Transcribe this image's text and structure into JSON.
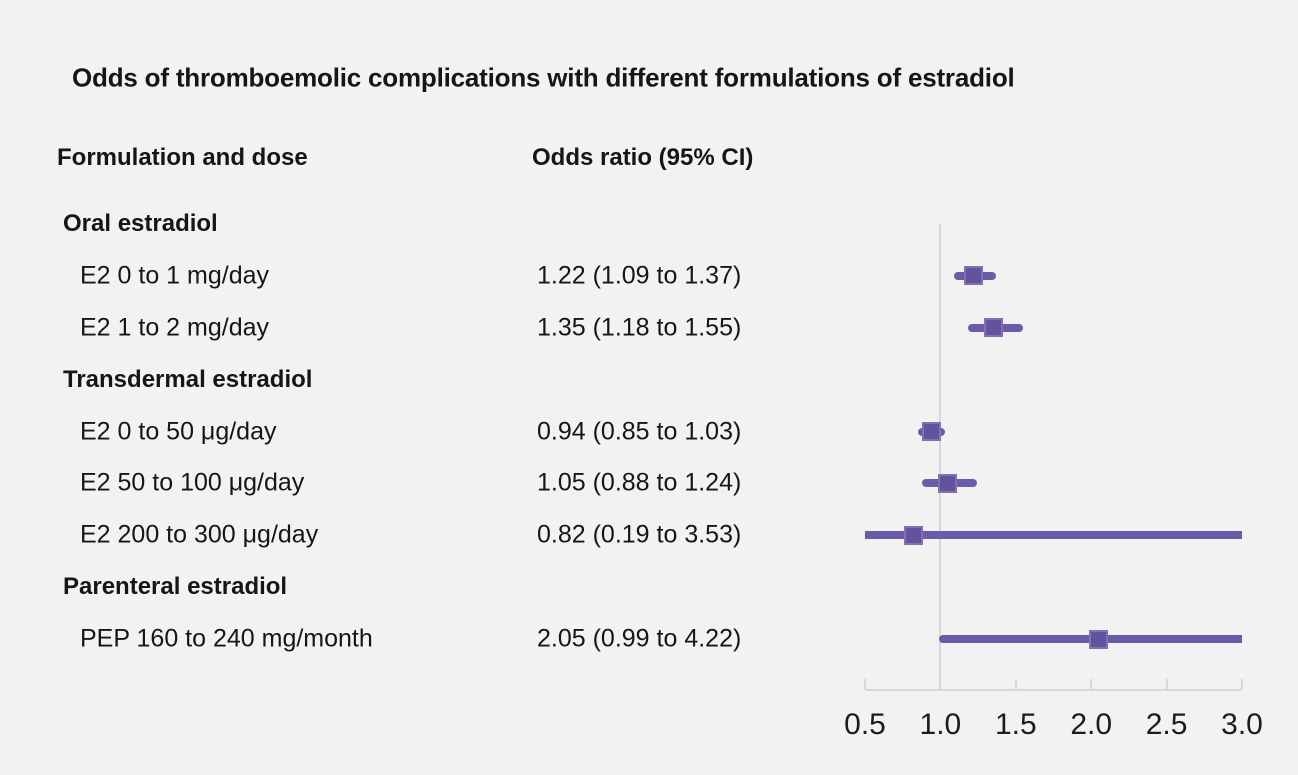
{
  "figure": {
    "title": "Odds of thromboemolic complications with different formulations of estradiol"
  },
  "table": {
    "col1_header": "Formulation and dose",
    "col2_header": "Odds ratio (95% CI)"
  },
  "chart_data": {
    "type": "scatter",
    "subtype": "forest-plot",
    "title": "Odds of thromboemolic complications with different formulations of estradiol",
    "xlabel": "",
    "ylabel": "",
    "xlim": [
      0.5,
      3.0
    ],
    "x_tick_labels": [
      "0.5",
      "1.0",
      "1.5",
      "2.0",
      "2.5",
      "3.0"
    ],
    "x_tick_values": [
      0.5,
      1.0,
      1.5,
      2.0,
      2.5,
      3.0
    ],
    "reference_line_x": 1.0,
    "grid": false,
    "legend_position": "none",
    "rows": [
      {
        "kind": "group",
        "label": "Oral estradiol"
      },
      {
        "kind": "item",
        "label": "E2 0 to 1 mg/day",
        "or_text": "1.22 (1.09 to 1.37)",
        "or": 1.22,
        "ci_low": 1.09,
        "ci_high": 1.37
      },
      {
        "kind": "item",
        "label": "E2 1 to 2 mg/day",
        "or_text": "1.35 (1.18 to 1.55)",
        "or": 1.35,
        "ci_low": 1.18,
        "ci_high": 1.55
      },
      {
        "kind": "group",
        "label": "Transdermal estradiol"
      },
      {
        "kind": "item",
        "label": "E2 0 to 50 μg/day",
        "or_text": "0.94 (0.85 to 1.03)",
        "or": 0.94,
        "ci_low": 0.85,
        "ci_high": 1.03
      },
      {
        "kind": "item",
        "label": "E2 50 to 100 μg/day",
        "or_text": "1.05 (0.88 to 1.24)",
        "or": 1.05,
        "ci_low": 0.88,
        "ci_high": 1.24
      },
      {
        "kind": "item",
        "label": "E2 200 to 300 μg/day",
        "or_text": "0.82 (0.19 to 3.53)",
        "or": 0.82,
        "ci_low": 0.19,
        "ci_high": 3.53
      },
      {
        "kind": "group",
        "label": "Parenteral estradiol"
      },
      {
        "kind": "item",
        "label": "PEP 160 to 240 mg/month",
        "or_text": "2.05 (0.99 to 4.22)",
        "or": 2.05,
        "ci_low": 0.99,
        "ci_high": 4.22
      }
    ],
    "colors": {
      "ci_line": "#6c5ca8",
      "marker": "#63539f",
      "marker_edge": "#b9aed6",
      "axis": "#d4d8e0",
      "reference_line": "#d4d8e0",
      "background": "#f2f2f2",
      "text": "#161616"
    }
  }
}
